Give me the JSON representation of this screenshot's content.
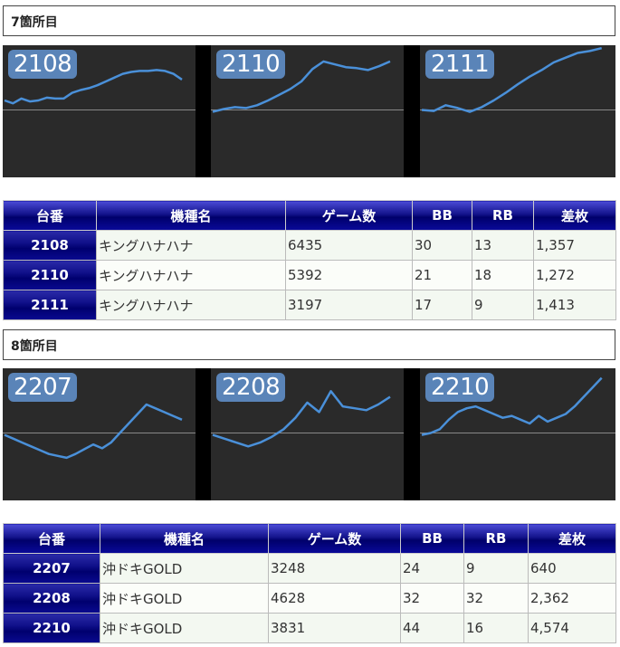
{
  "sections": [
    {
      "title": "7箇所目",
      "charts": [
        {
          "label": "2108",
          "values": [
            0.1,
            0.07,
            0.12,
            0.09,
            0.1,
            0.13,
            0.12,
            0.12,
            0.18,
            0.21,
            0.23,
            0.26,
            0.3,
            0.34,
            0.38,
            0.4,
            0.41,
            0.41,
            0.42,
            0.41,
            0.38,
            0.32
          ]
        },
        {
          "label": "2110",
          "values": [
            -0.02,
            0.01,
            0.03,
            0.02,
            0.05,
            0.1,
            0.16,
            0.22,
            0.3,
            0.43,
            0.51,
            0.48,
            0.45,
            0.44,
            0.42,
            0.46,
            0.51
          ]
        },
        {
          "label": "2111",
          "values": [
            0.0,
            -0.01,
            0.05,
            0.02,
            -0.02,
            0.03,
            0.1,
            0.18,
            0.27,
            0.35,
            0.42,
            0.5,
            0.55,
            0.6,
            0.62,
            0.65
          ]
        }
      ],
      "columns": [
        "台番",
        "機種名",
        "ゲーム数",
        "BB",
        "RB",
        "差枚"
      ],
      "rows": [
        {
          "id": "2108",
          "name": "キングハナハナ",
          "games": "6435",
          "bb": "30",
          "rb": "13",
          "diff": "1,357"
        },
        {
          "id": "2110",
          "name": "キングハナハナ",
          "games": "5392",
          "bb": "21",
          "rb": "18",
          "diff": "1,272"
        },
        {
          "id": "2111",
          "name": "キングハナハナ",
          "games": "3197",
          "bb": "17",
          "rb": "9",
          "diff": "1,413"
        }
      ]
    },
    {
      "title": "8箇所目",
      "charts": [
        {
          "label": "2207",
          "values": [
            -0.02,
            -0.06,
            -0.1,
            -0.14,
            -0.18,
            -0.22,
            -0.24,
            -0.26,
            -0.22,
            -0.17,
            -0.12,
            -0.16,
            -0.1,
            0.0,
            0.1,
            0.2,
            0.3,
            0.26,
            0.22,
            0.18,
            0.14
          ]
        },
        {
          "label": "2208",
          "values": [
            -0.02,
            -0.06,
            -0.1,
            -0.14,
            -0.1,
            -0.04,
            0.04,
            0.16,
            0.32,
            0.22,
            0.44,
            0.28,
            0.26,
            0.24,
            0.3,
            0.38
          ]
        },
        {
          "label": "2210",
          "values": [
            -0.02,
            0.0,
            0.04,
            0.14,
            0.22,
            0.26,
            0.28,
            0.24,
            0.2,
            0.16,
            0.18,
            0.14,
            0.1,
            0.18,
            0.12,
            0.16,
            0.2,
            0.28,
            0.38,
            0.48,
            0.58
          ]
        }
      ],
      "columns": [
        "台番",
        "機種名",
        "ゲーム数",
        "BB",
        "RB",
        "差枚"
      ],
      "rows": [
        {
          "id": "2207",
          "name": "沖ドキGOLD",
          "games": "3248",
          "bb": "24",
          "rb": "9",
          "diff": "640"
        },
        {
          "id": "2208",
          "name": "沖ドキGOLD",
          "games": "4628",
          "bb": "32",
          "rb": "32",
          "diff": "2,362"
        },
        {
          "id": "2210",
          "name": "沖ドキGOLD",
          "games": "3831",
          "bb": "44",
          "rb": "16",
          "diff": "4,574"
        }
      ]
    }
  ],
  "colors": {
    "line": "#4a90d9",
    "zero_line": "#888888",
    "panel_bg": "#2a2a2a",
    "header_navy": "#00006a"
  }
}
